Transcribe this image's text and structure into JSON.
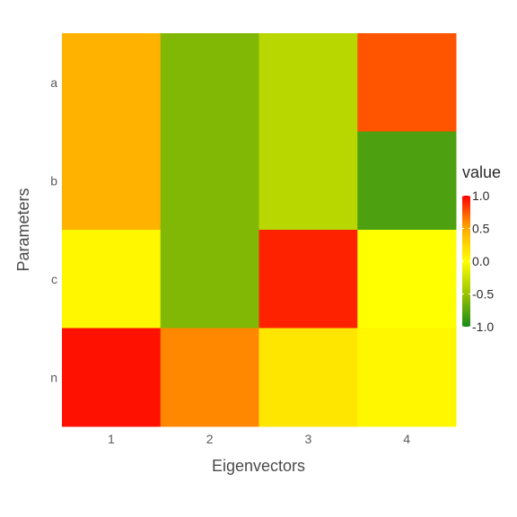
{
  "chart_data": {
    "type": "heatmap",
    "title": "",
    "xlabel": "Eigenvectors",
    "ylabel": "Parameters",
    "x_categories": [
      "1",
      "2",
      "3",
      "4"
    ],
    "y_categories": [
      "a",
      "b",
      "c",
      "n"
    ],
    "values": [
      [
        0.45,
        -0.6,
        -0.35,
        0.75
      ],
      [
        0.45,
        -0.6,
        -0.35,
        -0.8
      ],
      [
        0.05,
        -0.6,
        0.9,
        0.0
      ],
      [
        0.95,
        0.6,
        0.15,
        0.05
      ]
    ],
    "color_scale": {
      "name": "value",
      "min": -1.0,
      "max": 1.0,
      "ticks": [
        1.0,
        0.5,
        0.0,
        -0.5,
        -1.0
      ],
      "tick_labels": [
        "1.0",
        "0.5",
        "0.0",
        "-0.5",
        "-1.0"
      ],
      "stops": [
        {
          "value": -1.0,
          "color": "#1a8a1a"
        },
        {
          "value": -0.5,
          "color": "#99c400"
        },
        {
          "value": 0.0,
          "color": "#ffff00"
        },
        {
          "value": 0.5,
          "color": "#ffaa00"
        },
        {
          "value": 1.0,
          "color": "#ff0000"
        }
      ]
    },
    "legend_position": "right",
    "grid": false
  }
}
